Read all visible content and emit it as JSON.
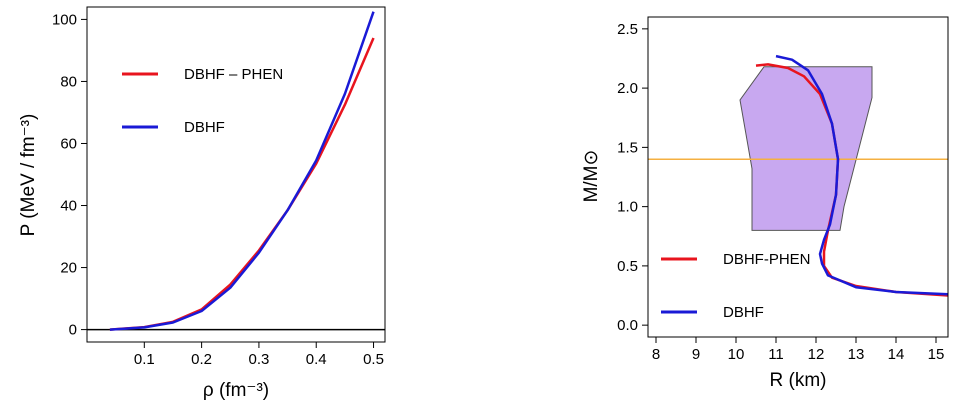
{
  "chart_data": [
    {
      "type": "line",
      "xlabel": "ρ (fm⁻³)",
      "ylabel": "P (MeV / fm⁻³)",
      "xlim": [
        0.0,
        0.52
      ],
      "ylim": [
        -4,
        104
      ],
      "xticks": [
        0.1,
        0.2,
        0.3,
        0.4,
        0.5
      ],
      "yticks": [
        0,
        20,
        40,
        60,
        80,
        100
      ],
      "xtick_labels": [
        "0.1",
        "0.2",
        "0.3",
        "0.4",
        "0.5"
      ],
      "ytick_labels": [
        "0",
        "20",
        "40",
        "60",
        "80",
        "100"
      ],
      "grid": false,
      "legend_position": "upper-left",
      "reference_line": {
        "axis": "y",
        "value": 0,
        "color": "#000000"
      },
      "series": [
        {
          "name": "DBHF – PHEN",
          "color": "#e8141e",
          "x": [
            0.04,
            0.1,
            0.15,
            0.2,
            0.25,
            0.3,
            0.35,
            0.4,
            0.45,
            0.5
          ],
          "y": [
            0,
            0.8,
            2.5,
            6.5,
            14.5,
            25.5,
            38.5,
            53.5,
            72.5,
            94
          ]
        },
        {
          "name": "DBHF",
          "color": "#1a1ad6",
          "x": [
            0.04,
            0.1,
            0.15,
            0.2,
            0.25,
            0.3,
            0.35,
            0.4,
            0.45,
            0.5
          ],
          "y": [
            0,
            0.7,
            2.3,
            6.0,
            13.5,
            24.8,
            38.5,
            54.5,
            76.0,
            102.5
          ]
        }
      ]
    },
    {
      "type": "line",
      "xlabel": "R (km)",
      "ylabel": "M/M⊙",
      "xlim": [
        7.8,
        15.3
      ],
      "ylim": [
        -0.1,
        2.6
      ],
      "xticks": [
        8,
        9,
        10,
        11,
        12,
        13,
        14,
        15
      ],
      "yticks": [
        0.0,
        0.5,
        1.0,
        1.5,
        2.0,
        2.5
      ],
      "xtick_labels": [
        "8",
        "9",
        "10",
        "11",
        "12",
        "13",
        "14",
        "15"
      ],
      "ytick_labels": [
        "0.0",
        "0.5",
        "1.0",
        "1.5",
        "2.0",
        "2.5"
      ],
      "grid": false,
      "legend_position": "lower-left",
      "reference_line": {
        "axis": "y",
        "value": 1.4,
        "color": "#f5b041"
      },
      "constraint_region": {
        "color": "#c8a8f0",
        "x": [
          10.7,
          13.4,
          13.4,
          12.7,
          12.6,
          10.4,
          10.4,
          10.1,
          10.7
        ],
        "y": [
          2.18,
          2.18,
          1.92,
          1.0,
          0.8,
          0.8,
          1.32,
          1.9,
          2.18
        ]
      },
      "series": [
        {
          "name": "DBHF-PHEN",
          "color": "#e8141e",
          "x": [
            10.5,
            10.8,
            11.3,
            11.7,
            12.1,
            12.4,
            12.55,
            12.5,
            12.3,
            12.2,
            12.2,
            12.4,
            13.0,
            14.0,
            15.3
          ],
          "y": [
            2.19,
            2.2,
            2.17,
            2.1,
            1.95,
            1.7,
            1.4,
            1.1,
            0.8,
            0.62,
            0.5,
            0.4,
            0.33,
            0.28,
            0.25
          ]
        },
        {
          "name": "DBHF",
          "color": "#1a1ad6",
          "x": [
            11.0,
            11.4,
            11.8,
            12.15,
            12.4,
            12.55,
            12.5,
            12.35,
            12.2,
            12.1,
            12.15,
            12.3,
            13.0,
            14.0,
            15.3
          ],
          "y": [
            2.27,
            2.24,
            2.15,
            1.95,
            1.7,
            1.4,
            1.1,
            0.85,
            0.72,
            0.6,
            0.52,
            0.42,
            0.32,
            0.28,
            0.26
          ]
        }
      ]
    }
  ]
}
